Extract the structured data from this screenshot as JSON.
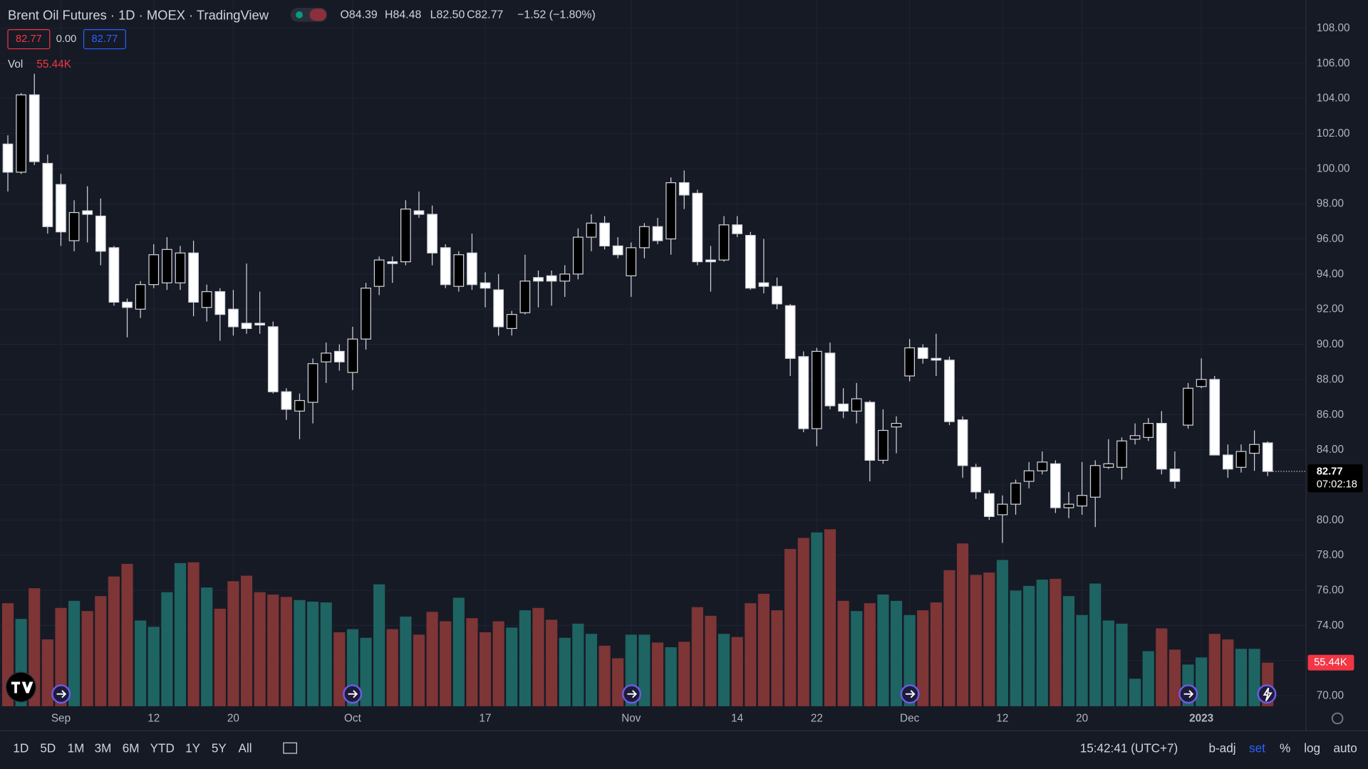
{
  "chart_data": {
    "type": "candlestick",
    "title": "Brent Oil Futures · 1D · MOEX · TradingView",
    "ohlc_legend": [
      "O84.39",
      "H84.48",
      "L82.50",
      "C82.77",
      "−1.52 (−1.80%)"
    ],
    "bid": 82.77,
    "spread": "0.00",
    "ask": 82.77,
    "countdown": "07:02:18",
    "categories": [
      null,
      null,
      null,
      null,
      "Sep",
      null,
      null,
      null,
      null,
      null,
      null,
      "12",
      null,
      null,
      null,
      null,
      null,
      "20",
      null,
      null,
      null,
      null,
      null,
      null,
      null,
      null,
      "Oct",
      null,
      null,
      null,
      null,
      null,
      null,
      null,
      null,
      null,
      "17",
      null,
      null,
      null,
      null,
      null,
      null,
      null,
      null,
      null,
      null,
      "Nov",
      null,
      null,
      null,
      null,
      null,
      null,
      null,
      "14",
      null,
      null,
      null,
      null,
      null,
      "22",
      null,
      null,
      null,
      null,
      null,
      null,
      "Dec",
      null,
      null,
      null,
      null,
      null,
      null,
      "12",
      null,
      null,
      null,
      null,
      null,
      "20",
      null,
      null,
      null,
      null,
      null,
      null,
      null,
      null,
      "2023",
      null,
      null,
      null,
      null,
      null
    ],
    "open": [
      101.4,
      99.8,
      104.2,
      100.3,
      99.1,
      95.9,
      97.6,
      97.3,
      95.5,
      92.4,
      92.0,
      93.4,
      93.5,
      93.5,
      95.2,
      92.1,
      93.0,
      92.0,
      91.2,
      91.2,
      91.0,
      87.3,
      86.2,
      86.7,
      89.0,
      89.6,
      88.4,
      90.3,
      93.3,
      94.7,
      94.7,
      97.6,
      97.4,
      95.5,
      93.3,
      95.2,
      93.5,
      93.1,
      90.9,
      91.8,
      93.8,
      93.9,
      93.6,
      94.0,
      96.1,
      96.9,
      95.6,
      93.9,
      95.5,
      96.7,
      96.0,
      99.2,
      98.6,
      94.8,
      94.8,
      96.8,
      96.2,
      93.5,
      93.3,
      92.2,
      89.3,
      85.2,
      89.5,
      86.6,
      86.2,
      86.7,
      83.4,
      85.3,
      88.2,
      89.8,
      89.2,
      89.1,
      85.7,
      83.0,
      81.5,
      80.3,
      80.9,
      82.2,
      82.8,
      83.2,
      80.7,
      80.8,
      81.3,
      83.0,
      83.0,
      84.6,
      84.7,
      85.5,
      82.9,
      85.4,
      87.6,
      88.0,
      83.7,
      83.0,
      83.8,
      84.39
    ],
    "high": [
      101.9,
      104.3,
      105.4,
      100.8,
      99.7,
      98.2,
      99.0,
      98.3,
      95.6,
      92.6,
      93.6,
      95.7,
      96.1,
      95.6,
      95.9,
      93.4,
      93.2,
      93.1,
      94.6,
      93.0,
      91.3,
      87.5,
      87.2,
      89.2,
      90.1,
      90.0,
      91.0,
      93.5,
      95.0,
      95.0,
      98.2,
      98.7,
      97.9,
      95.7,
      95.3,
      96.3,
      94.1,
      94.0,
      91.9,
      95.1,
      94.2,
      94.2,
      94.5,
      96.6,
      97.4,
      97.3,
      96.1,
      95.8,
      96.9,
      97.2,
      99.5,
      99.9,
      98.8,
      95.6,
      97.3,
      97.3,
      96.4,
      96.0,
      93.8,
      92.3,
      89.6,
      89.8,
      90.1,
      87.5,
      87.8,
      86.8,
      86.3,
      85.9,
      90.3,
      90.0,
      90.6,
      89.3,
      85.9,
      83.2,
      81.7,
      81.4,
      82.3,
      83.3,
      83.9,
      83.4,
      81.6,
      83.3,
      83.4,
      84.6,
      84.7,
      85.5,
      85.8,
      86.2,
      83.9,
      87.8,
      89.2,
      88.2,
      84.3,
      84.3,
      85.1,
      84.48
    ],
    "low": [
      98.7,
      99.7,
      100.2,
      96.3,
      95.6,
      95.3,
      95.8,
      94.5,
      92.2,
      90.4,
      91.5,
      93.2,
      93.1,
      93.1,
      91.6,
      91.3,
      90.2,
      90.5,
      90.6,
      90.6,
      87.2,
      85.7,
      84.6,
      85.5,
      87.8,
      88.5,
      87.4,
      89.7,
      92.8,
      93.5,
      94.5,
      97.2,
      94.5,
      93.2,
      93.0,
      93.1,
      92.1,
      90.5,
      90.5,
      91.7,
      92.1,
      92.2,
      92.7,
      93.7,
      95.3,
      95.4,
      94.9,
      92.7,
      94.9,
      95.7,
      95.1,
      97.7,
      94.5,
      93.0,
      94.7,
      96.1,
      93.1,
      92.9,
      92.0,
      88.2,
      85.0,
      84.2,
      86.3,
      85.8,
      85.5,
      82.2,
      83.2,
      83.8,
      87.9,
      88.9,
      88.2,
      85.4,
      82.4,
      81.2,
      80.0,
      78.7,
      80.3,
      81.8,
      82.6,
      80.4,
      80.1,
      80.3,
      79.6,
      82.9,
      82.3,
      84.3,
      84.5,
      82.6,
      81.8,
      85.2,
      87.5,
      83.7,
      82.4,
      82.7,
      82.8,
      82.5
    ],
    "close": [
      99.8,
      104.2,
      100.4,
      96.7,
      96.4,
      97.5,
      97.4,
      95.3,
      92.4,
      92.1,
      93.4,
      95.1,
      95.4,
      95.2,
      92.4,
      93.0,
      91.7,
      91.0,
      90.9,
      91.1,
      87.3,
      86.3,
      86.8,
      88.9,
      89.5,
      89.0,
      90.3,
      93.2,
      94.8,
      94.6,
      97.7,
      97.4,
      95.2,
      93.4,
      95.1,
      93.4,
      93.2,
      91.0,
      91.7,
      93.6,
      93.6,
      93.6,
      94.0,
      96.1,
      96.9,
      95.6,
      95.1,
      95.5,
      96.7,
      95.9,
      99.2,
      98.5,
      94.7,
      94.7,
      96.8,
      96.3,
      93.2,
      93.3,
      92.3,
      89.2,
      85.2,
      89.6,
      86.5,
      86.2,
      86.9,
      83.4,
      85.1,
      85.5,
      89.8,
      89.2,
      89.1,
      85.6,
      83.1,
      81.6,
      80.2,
      80.9,
      82.1,
      82.8,
      83.3,
      80.7,
      80.9,
      81.4,
      83.1,
      83.2,
      84.5,
      84.8,
      85.5,
      82.9,
      82.2,
      87.5,
      88.0,
      83.7,
      82.9,
      83.9,
      84.3,
      82.77
    ],
    "candle_up_color": "#000000",
    "candle_down_color": "#ffffff",
    "wick_color": "#d1d4dc",
    "ylim": [
      69.4,
      109.6
    ],
    "yticks": [
      {
        "value": 70,
        "label": "70.00"
      },
      {
        "value": 72,
        "label": "72.00"
      },
      {
        "value": 74,
        "label": "74.00"
      },
      {
        "value": 76,
        "label": "76.00"
      },
      {
        "value": 78,
        "label": "78.00"
      },
      {
        "value": 80,
        "label": "80.00"
      },
      {
        "value": 82,
        "label": "82.00"
      },
      {
        "value": 84,
        "label": "84.00"
      },
      {
        "value": 86,
        "label": "86.00"
      },
      {
        "value": 88,
        "label": "88.00"
      },
      {
        "value": 90,
        "label": "90.00"
      },
      {
        "value": 92,
        "label": "92.00"
      },
      {
        "value": 94,
        "label": "94.00"
      },
      {
        "value": 96,
        "label": "96.00"
      },
      {
        "value": 98,
        "label": "98.00"
      },
      {
        "value": 100,
        "label": "100.00"
      },
      {
        "value": 102,
        "label": "102.00"
      },
      {
        "value": 104,
        "label": "104.00"
      },
      {
        "value": 106,
        "label": "106.00"
      },
      {
        "value": 108,
        "label": "108.00"
      }
    ],
    "grid": true,
    "volume": {
      "name": "Vol",
      "last_label": "55.44K",
      "vlim": [
        0,
        898
      ],
      "up_color": "#1e6463",
      "down_color": "#7e3536",
      "values": [
        131,
        111,
        150,
        85,
        125,
        134,
        121,
        140,
        165,
        181,
        109,
        101,
        145,
        182,
        183,
        151,
        124,
        159,
        166,
        145,
        142,
        139,
        135,
        133,
        132,
        94,
        98,
        87,
        155,
        98,
        114,
        91,
        120,
        108,
        138,
        112,
        94,
        108,
        100,
        122,
        125,
        110,
        87,
        105,
        92,
        77,
        61,
        91,
        91,
        81,
        75,
        82,
        126,
        115,
        92,
        88,
        131,
        143,
        122,
        200,
        214,
        221,
        225,
        134,
        121,
        131,
        142,
        134,
        116,
        122,
        132,
        173,
        207,
        167,
        170,
        186,
        147,
        153,
        161,
        162,
        140,
        116,
        156,
        109,
        105,
        35,
        70,
        99,
        72,
        53,
        62,
        92,
        85,
        73,
        73,
        55.44
      ]
    }
  },
  "toolbar": {
    "ranges": [
      "1D",
      "5D",
      "1M",
      "3M",
      "6M",
      "YTD",
      "1Y",
      "5Y",
      "All"
    ],
    "clock": "15:42:41 (UTC+7)",
    "options": [
      "b-adj",
      "set",
      "%",
      "log",
      "auto"
    ]
  }
}
